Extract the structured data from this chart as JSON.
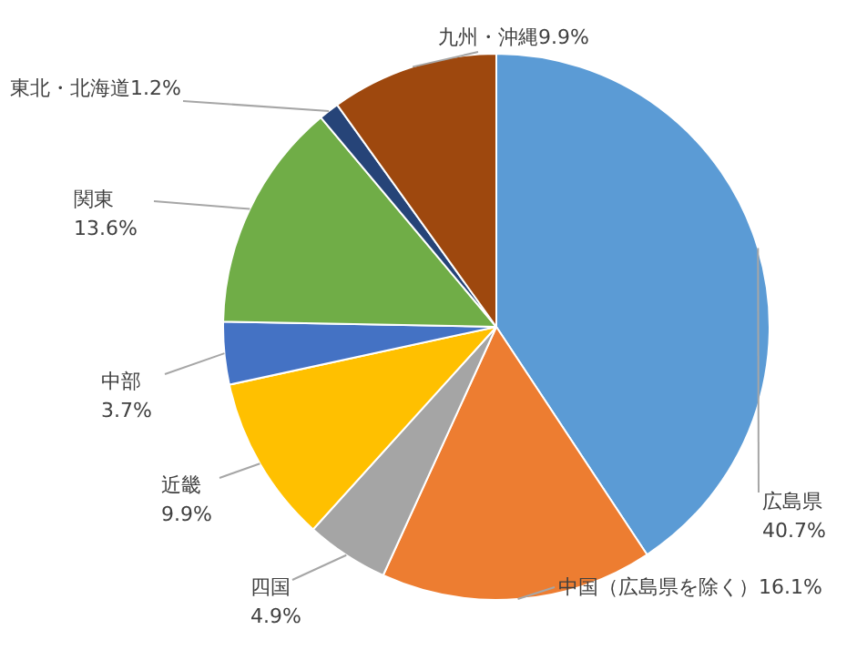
{
  "chart_data": {
    "type": "pie",
    "categories": [
      "広島県",
      "中国（広島県を除く）",
      "四国",
      "近畿",
      "中部",
      "関東",
      "東北・北海道",
      "九州・沖縄"
    ],
    "values": [
      40.7,
      16.1,
      4.9,
      9.9,
      3.7,
      13.6,
      1.2,
      9.9
    ],
    "value_labels": [
      "40.7%",
      "16.1%",
      "4.9%",
      "9.9%",
      "3.7%",
      "13.6%",
      "1.2%",
      "9.9%"
    ],
    "colors": [
      "#5b9bd5",
      "#ed7d31",
      "#a5a5a5",
      "#ffc000",
      "#4472c4",
      "#70ad47",
      "#264478",
      "#9e480e"
    ]
  }
}
